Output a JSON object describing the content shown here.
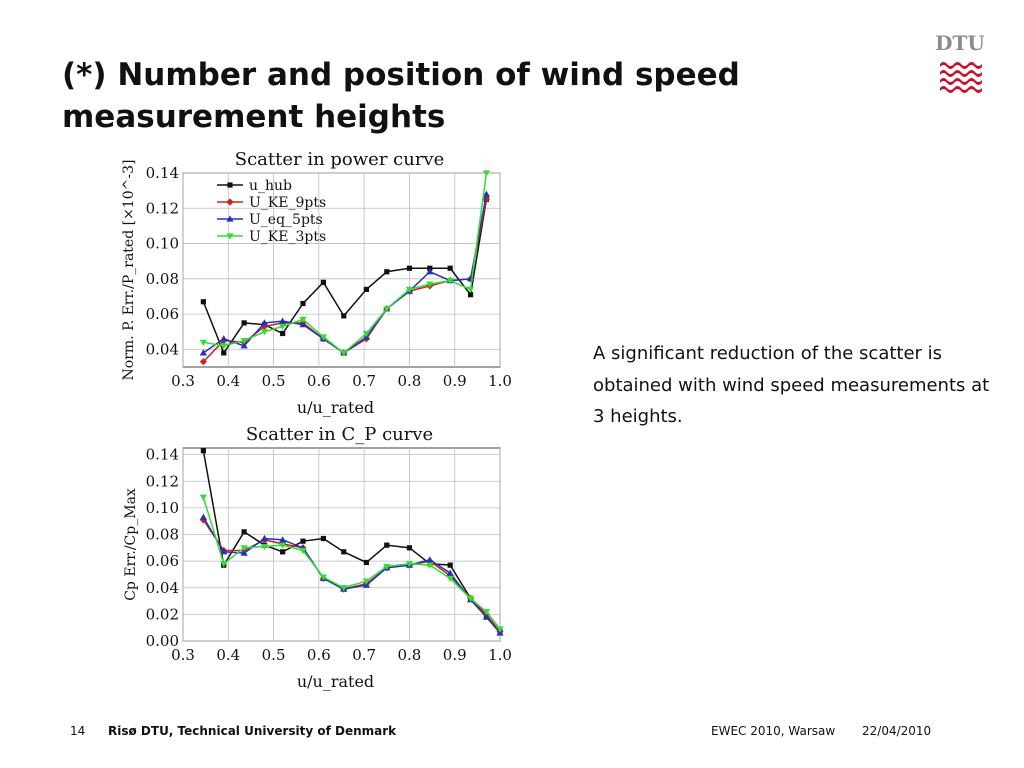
{
  "slide": {
    "title": "(*) Number and position of wind speed measurement heights",
    "description": "A significant reduction of the scatter is obtained with wind speed measurements at 3 heights.",
    "logo_text": "DTU",
    "logo_color": "#c8102e"
  },
  "footer": {
    "page_number": "14",
    "organization": "Risø DTU, Technical University of Denmark",
    "event": "EWEC 2010, Warsaw",
    "date": "22/04/2010"
  },
  "chart_data": [
    {
      "type": "line",
      "title": "Scatter in power curve",
      "xlabel": "u/u_rated",
      "ylabel": "Norm. P. Err./P_rated [×10^-3]",
      "xlim": [
        0.3,
        1.0
      ],
      "ylim": [
        0.03,
        0.14
      ],
      "xticks": [
        0.3,
        0.4,
        0.5,
        0.6,
        0.7,
        0.8,
        0.9,
        1.0
      ],
      "yticks": [
        0.04,
        0.06,
        0.08,
        0.1,
        0.12,
        0.14
      ],
      "grid": true,
      "legend_position": "top-left",
      "x": [
        0.345,
        0.39,
        0.435,
        0.48,
        0.52,
        0.565,
        0.61,
        0.655,
        0.705,
        0.75,
        0.8,
        0.845,
        0.89,
        0.935,
        0.97
      ],
      "series": [
        {
          "name": "u_hub",
          "color": "#111111",
          "marker": "square",
          "values": [
            0.067,
            0.038,
            0.055,
            0.054,
            0.049,
            0.066,
            0.078,
            0.059,
            0.074,
            0.084,
            0.086,
            0.086,
            0.086,
            0.071,
            0.125
          ]
        },
        {
          "name": "U_KE_9pts",
          "color": "#cc2222",
          "marker": "diamond",
          "values": [
            0.033,
            0.045,
            0.044,
            0.053,
            0.055,
            0.055,
            0.046,
            0.038,
            0.046,
            0.063,
            0.073,
            0.076,
            0.079,
            0.08,
            0.125
          ]
        },
        {
          "name": "U_eq_5pts",
          "color": "#2233bb",
          "marker": "triangle",
          "values": [
            0.038,
            0.046,
            0.042,
            0.055,
            0.056,
            0.054,
            0.046,
            0.038,
            0.047,
            0.063,
            0.073,
            0.084,
            0.079,
            0.08,
            0.128
          ]
        },
        {
          "name": "U_KE_3pts",
          "color": "#33dd33",
          "marker": "down-triangle",
          "values": [
            0.044,
            0.042,
            0.045,
            0.05,
            0.053,
            0.057,
            0.047,
            0.038,
            0.049,
            0.063,
            0.074,
            0.077,
            0.079,
            0.074,
            0.14
          ]
        }
      ]
    },
    {
      "type": "line",
      "title": "Scatter in C_P curve",
      "xlabel": "u/u_rated",
      "ylabel": "Cp Err./Cp_Max",
      "xlim": [
        0.3,
        1.0
      ],
      "ylim": [
        0.0,
        0.145
      ],
      "xticks": [
        0.3,
        0.4,
        0.5,
        0.6,
        0.7,
        0.8,
        0.9,
        1.0
      ],
      "yticks": [
        0.0,
        0.02,
        0.04,
        0.06,
        0.08,
        0.1,
        0.12,
        0.14
      ],
      "grid": true,
      "legend_position": "none",
      "x": [
        0.345,
        0.39,
        0.435,
        0.48,
        0.52,
        0.565,
        0.61,
        0.655,
        0.705,
        0.75,
        0.8,
        0.845,
        0.89,
        0.935,
        0.97,
        1.0
      ],
      "series": [
        {
          "name": "u_hub",
          "color": "#111111",
          "marker": "square",
          "values": [
            0.143,
            0.057,
            0.082,
            0.072,
            0.067,
            0.075,
            0.077,
            0.067,
            0.059,
            0.072,
            0.07,
            0.058,
            0.057,
            0.032,
            0.018,
            0.007
          ]
        },
        {
          "name": "U_KE_9pts",
          "color": "#cc2222",
          "marker": "diamond",
          "values": [
            0.091,
            0.068,
            0.068,
            0.076,
            0.073,
            0.07,
            0.047,
            0.039,
            0.043,
            0.055,
            0.057,
            0.06,
            0.049,
            0.032,
            0.02,
            0.007
          ]
        },
        {
          "name": "U_eq_5pts",
          "color": "#2233bb",
          "marker": "triangle",
          "values": [
            0.093,
            0.067,
            0.066,
            0.077,
            0.076,
            0.07,
            0.047,
            0.039,
            0.042,
            0.055,
            0.057,
            0.061,
            0.051,
            0.031,
            0.018,
            0.006
          ]
        },
        {
          "name": "U_KE_3pts",
          "color": "#33dd33",
          "marker": "down-triangle",
          "values": [
            0.108,
            0.058,
            0.07,
            0.071,
            0.072,
            0.068,
            0.048,
            0.04,
            0.045,
            0.056,
            0.058,
            0.057,
            0.047,
            0.032,
            0.022,
            0.009
          ]
        }
      ]
    }
  ]
}
